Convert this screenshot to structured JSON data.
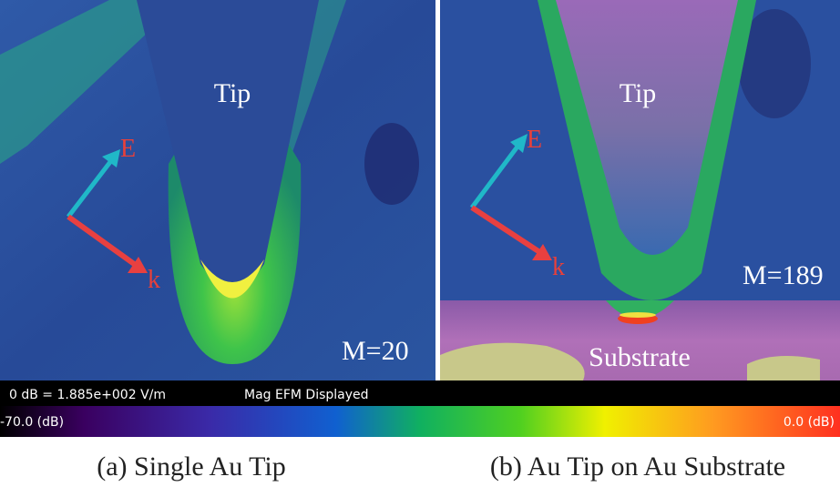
{
  "panels": [
    {
      "tip_label": "Tip",
      "e_label": "E",
      "k_label": "k",
      "m_label": "M=20",
      "caption": "(a) Single Au Tip"
    },
    {
      "tip_label": "Tip",
      "e_label": "E",
      "k_label": "k",
      "m_label": "M=189",
      "substrate_label": "Substrate",
      "caption": "(b) Au Tip on Au Substrate"
    }
  ],
  "colorbar": {
    "reference": "0 dB = 1.885e+002 V/m",
    "mode": "Mag EFM Displayed",
    "min_label": "-70.0 (dB)",
    "max_label": "0.0 (dB)"
  }
}
